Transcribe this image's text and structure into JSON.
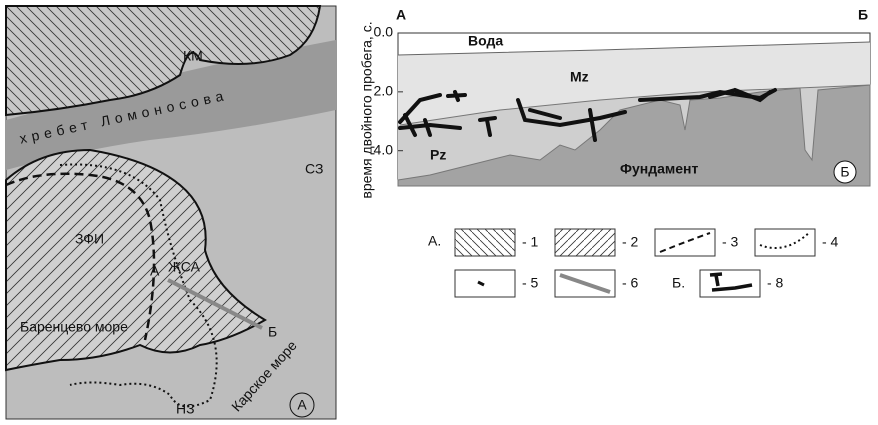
{
  "map": {
    "labels": {
      "km": "КМ",
      "ridge": "хребет Ломоносова",
      "sz": "СЗ",
      "zfi": "ЗФИ",
      "a": "А",
      "zhsa": "ЖСА",
      "b": "Б",
      "barents": "Баренцево море",
      "kara": "Карское море",
      "nz": "НЗ",
      "panel": "А"
    }
  },
  "section": {
    "corner_left": "А",
    "corner_right": "Б",
    "y_label": "время двойного пробега, с.",
    "ylim": [
      0,
      5.2
    ],
    "yticks": [
      {
        "value": 0,
        "label": "0.0"
      },
      {
        "value": 2,
        "label": "2.0"
      },
      {
        "value": 4,
        "label": "4.0"
      }
    ],
    "layers": [
      "Вода",
      "Mz",
      "Pz",
      "Фундамент"
    ],
    "panel": "Б"
  },
  "legend": {
    "group_a": "А.",
    "items": [
      "- 1",
      "- 2",
      "- 3",
      "- 4",
      "- 5",
      "- 6"
    ],
    "group_b": "Б.",
    "item_b": "- 8"
  }
}
